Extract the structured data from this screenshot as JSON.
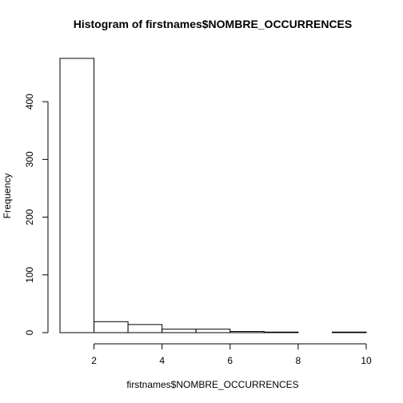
{
  "chart_data": {
    "type": "bar",
    "title": "Histogram of firstnames$NOMBRE_OCCURRENCES",
    "xlabel": "firstnames$NOMBRE_OCCURRENCES",
    "ylabel": "Frequency",
    "bins": [
      {
        "start": 1,
        "end": 2,
        "count": 475
      },
      {
        "start": 2,
        "end": 3,
        "count": 19
      },
      {
        "start": 3,
        "end": 4,
        "count": 14
      },
      {
        "start": 4,
        "end": 5,
        "count": 6
      },
      {
        "start": 5,
        "end": 6,
        "count": 6
      },
      {
        "start": 6,
        "end": 7,
        "count": 2
      },
      {
        "start": 7,
        "end": 8,
        "count": 1
      },
      {
        "start": 8,
        "end": 9,
        "count": 0
      },
      {
        "start": 9,
        "end": 10,
        "count": 1
      }
    ],
    "xlim": [
      1,
      10
    ],
    "ylim": [
      0,
      475
    ],
    "x_ticks": [
      2,
      4,
      6,
      8,
      10
    ],
    "y_ticks": [
      0,
      100,
      200,
      300,
      400
    ],
    "grid": false
  }
}
